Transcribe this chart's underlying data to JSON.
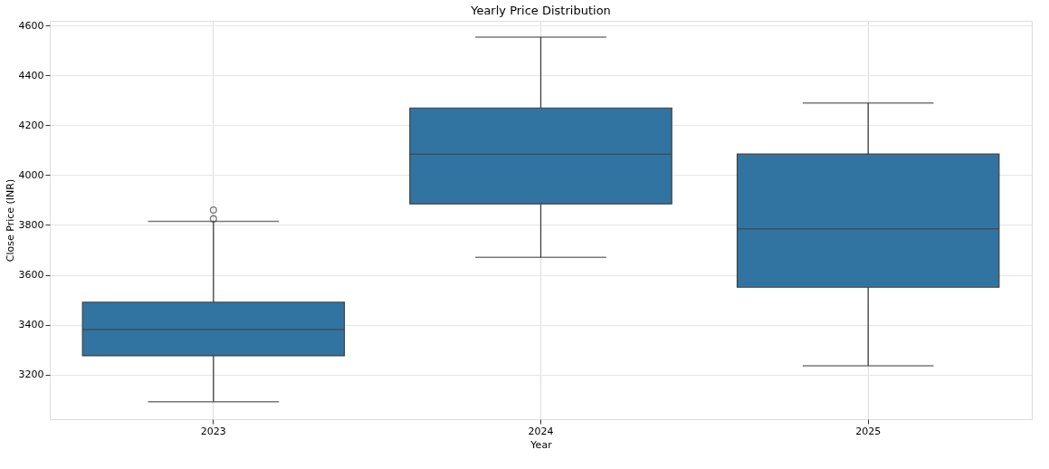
{
  "chart_data": {
    "type": "box",
    "title": "Yearly Price Distribution",
    "xlabel": "Year",
    "ylabel": "Close Price (INR)",
    "categories": [
      "2023",
      "2024",
      "2025"
    ],
    "boxes": [
      {
        "low": 3090,
        "q1": 3275,
        "median": 3380,
        "q3": 3490,
        "high": 3815,
        "outliers": [
          3825,
          3860
        ]
      },
      {
        "low": 3670,
        "q1": 3885,
        "median": 4085,
        "q3": 4270,
        "high": 4555
      },
      {
        "low": 3235,
        "q1": 3550,
        "median": 3785,
        "q3": 4085,
        "high": 4290
      }
    ],
    "color": "#3274a1",
    "ylim": [
      3020,
      4620
    ],
    "yticks": [
      3200,
      3400,
      3600,
      3800,
      4000,
      4200,
      4400,
      4600
    ],
    "grid": true
  }
}
